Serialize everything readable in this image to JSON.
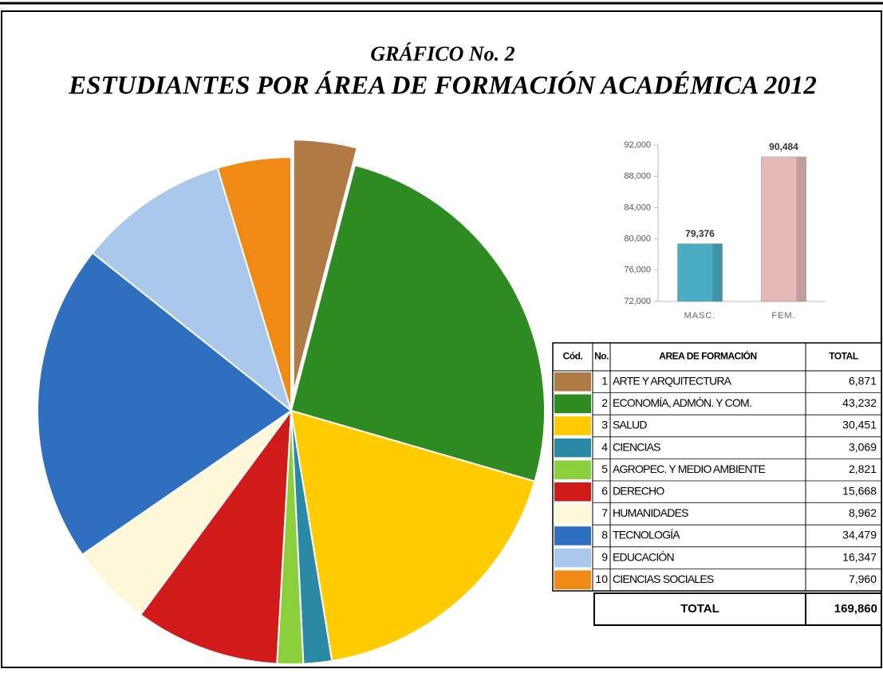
{
  "chart_data": [
    {
      "type": "pie",
      "title": "GRÁFICO No. 2",
      "subtitle": "ESTUDIANTES POR ÁREA DE FORMACIÓN ACADÉMICA 2012",
      "codes": [
        1,
        2,
        3,
        4,
        5,
        6,
        7,
        8,
        9,
        10
      ],
      "categories": [
        "ARTE Y ARQUITECTURA",
        "ECONOMÍA, ADMÓN. Y COM.",
        "SALUD",
        "CIENCIAS",
        "AGROPEC. Y MEDIO AMBIENTE",
        "DERECHO",
        "HUMANIDADES",
        "TECNOLOGÍA",
        "EDUCACIÓN",
        "CIENCIAS SOCIALES"
      ],
      "values": [
        6871,
        43232,
        30451,
        3069,
        2821,
        15668,
        8962,
        34479,
        16347,
        7960
      ],
      "value_labels": [
        "6,871",
        "43,232",
        "30,451",
        "3,069",
        "2,821",
        "15,668",
        "8,962",
        "34,479",
        "16,347",
        "7,960"
      ],
      "colors": [
        "#b07a45",
        "#2e8b22",
        "#ffcc00",
        "#2a8aa6",
        "#8ccf3c",
        "#d11a1a",
        "#fdf8d8",
        "#2e6fc0",
        "#a9c8ec",
        "#f08a14"
      ],
      "total": {
        "value": 169860,
        "label": "169,860"
      }
    },
    {
      "type": "bar",
      "categories": [
        "MASC.",
        "FEM."
      ],
      "values": [
        79376,
        90484
      ],
      "value_labels": [
        "79,376",
        "90,484"
      ],
      "colors": [
        "#4bacc6",
        "#e6b9b8"
      ],
      "ylim": [
        72000,
        92000
      ],
      "yticks": [
        {
          "value": 72000,
          "label": "72,000"
        },
        {
          "value": 76000,
          "label": "76,000"
        },
        {
          "value": 80000,
          "label": "80,000"
        },
        {
          "value": 84000,
          "label": "84,000"
        },
        {
          "value": 88000,
          "label": "88,000"
        },
        {
          "value": 92000,
          "label": "92,000"
        }
      ]
    }
  ],
  "table": {
    "headers": [
      "Cód.",
      "No.",
      "AREA DE FORMACIÓN",
      "TOTAL"
    ],
    "total_label": "TOTAL"
  }
}
